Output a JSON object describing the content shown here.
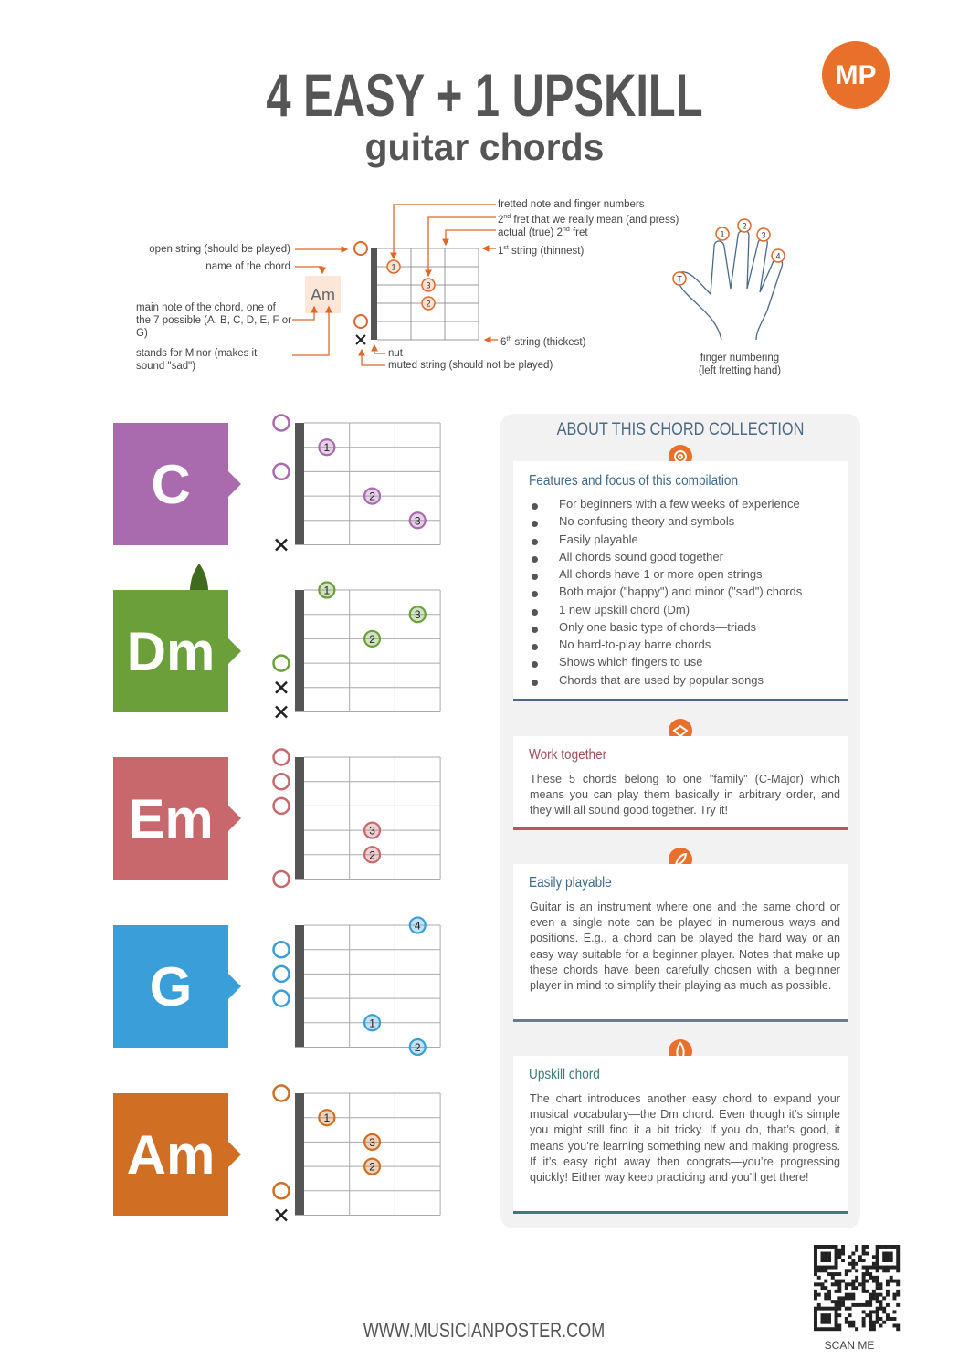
{
  "header": {
    "title": "4 EASY + 1 UPSKILL",
    "subtitle": "guitar chords",
    "logo": "MP"
  },
  "legend": {
    "fretted_note": "fretted note and finger numbers",
    "pressed_fret": {
      "number": "2",
      "suffix": "nd",
      "text": " fret that we really mean (and press)"
    },
    "actual_fret": {
      "text": "actual (true) ",
      "number": "2",
      "suffix": "nd",
      "tail": " fret"
    },
    "first_string": {
      "number": "1",
      "suffix": "st",
      "text": " string (thinnest)"
    },
    "sixth_string": {
      "number": "6",
      "suffix": "th",
      "text": " string (thickest)"
    },
    "open_string": "open string (should be played)",
    "chord_name": "name of the chord",
    "main_note": "main note of the chord, one of the 7 possible (A, B, C, D, E, F or G)",
    "minor": "stands for Minor (makes it sound \"sad\")",
    "nut": "nut",
    "muted": "muted string (should not be played)",
    "example_name": "Am",
    "example_fingers": [
      "1",
      "3",
      "2"
    ],
    "hand_fingers": [
      "1",
      "2",
      "3",
      "4",
      "T"
    ],
    "hand_caption": [
      "finger numbering",
      "(left fretting hand)"
    ]
  },
  "chords": [
    {
      "name": "C",
      "color": "#a96aae",
      "open": [
        1,
        3
      ],
      "muted": [
        6
      ],
      "dots": [
        {
          "string": 2,
          "fret": 1,
          "finger": 1
        },
        {
          "string": 4,
          "fret": 2,
          "finger": 2
        },
        {
          "string": 5,
          "fret": 3,
          "finger": 3
        }
      ]
    },
    {
      "name": "Dm",
      "color": "#6b9f3a",
      "open": [
        4
      ],
      "muted": [
        5,
        6
      ],
      "dots": [
        {
          "string": 1,
          "fret": 1,
          "finger": 1
        },
        {
          "string": 2,
          "fret": 3,
          "finger": 3
        },
        {
          "string": 3,
          "fret": 2,
          "finger": 2
        }
      ]
    },
    {
      "name": "Em",
      "color": "#c8686d",
      "open": [
        1,
        2,
        3,
        6
      ],
      "muted": [],
      "dots": [
        {
          "string": 4,
          "fret": 2,
          "finger": 3
        },
        {
          "string": 5,
          "fret": 2,
          "finger": 2
        }
      ]
    },
    {
      "name": "G",
      "color": "#3a9ed8",
      "open": [
        2,
        3,
        4
      ],
      "muted": [],
      "dots": [
        {
          "string": 1,
          "fret": 3,
          "finger": 4
        },
        {
          "string": 5,
          "fret": 2,
          "finger": 1
        },
        {
          "string": 6,
          "fret": 3,
          "finger": 2
        }
      ]
    },
    {
      "name": "Am",
      "color": "#d06f24",
      "open": [
        1,
        5
      ],
      "muted": [
        6
      ],
      "dots": [
        {
          "string": 2,
          "fret": 1,
          "finger": 1
        },
        {
          "string": 3,
          "fret": 2,
          "finger": 3
        },
        {
          "string": 4,
          "fret": 2,
          "finger": 2
        }
      ]
    }
  ],
  "about": {
    "title": "ABOUT THIS CHORD COLLECTION",
    "features": {
      "heading": "Features and focus of this compilation",
      "items": [
        "For beginners with a few weeks of experience",
        "No confusing theory and symbols",
        "Easily playable",
        "All chords sound good together",
        "All chords have 1 or more open strings",
        "Both major (\"happy\") and minor (\"sad\") chords",
        "1 new upskill chord (Dm)",
        "Only one basic type of chords—triads",
        "No hard-to-play barre chords",
        "Shows which fingers to use",
        "Chords that are used by popular songs"
      ]
    },
    "together": {
      "heading": "Work together",
      "text": "These 5 chords belong to one \"family\" (C-Major) which means you can play them basically in arbitrary order, and they will all sound good together. Try it!"
    },
    "playable": {
      "heading": "Easily playable",
      "text": "Guitar is an instrument where one and the same chord or even a single note can be played in numerous ways and positions. E.g., a chord can be played the hard way or an easy way suitable for a beginner player. Notes that make up these chords have been carefully chosen with a beginner player in mind to simplify their playing as much as possible."
    },
    "upskill": {
      "heading": "Upskill chord",
      "text": "The chart introduces another easy chord to expand your musical vocabulary—the Dm chord. Even though it’s simple you might still find it a bit tricky. If you do, that’s good, it means you’re learning something new and making progress. If it’s easy right away then congrats—you’re progressing quickly! Either way keep practicing and you'll get there!"
    }
  },
  "footer": {
    "url": "WWW.MUSICIANPOSTER.COM",
    "scan": "SCAN ME"
  }
}
